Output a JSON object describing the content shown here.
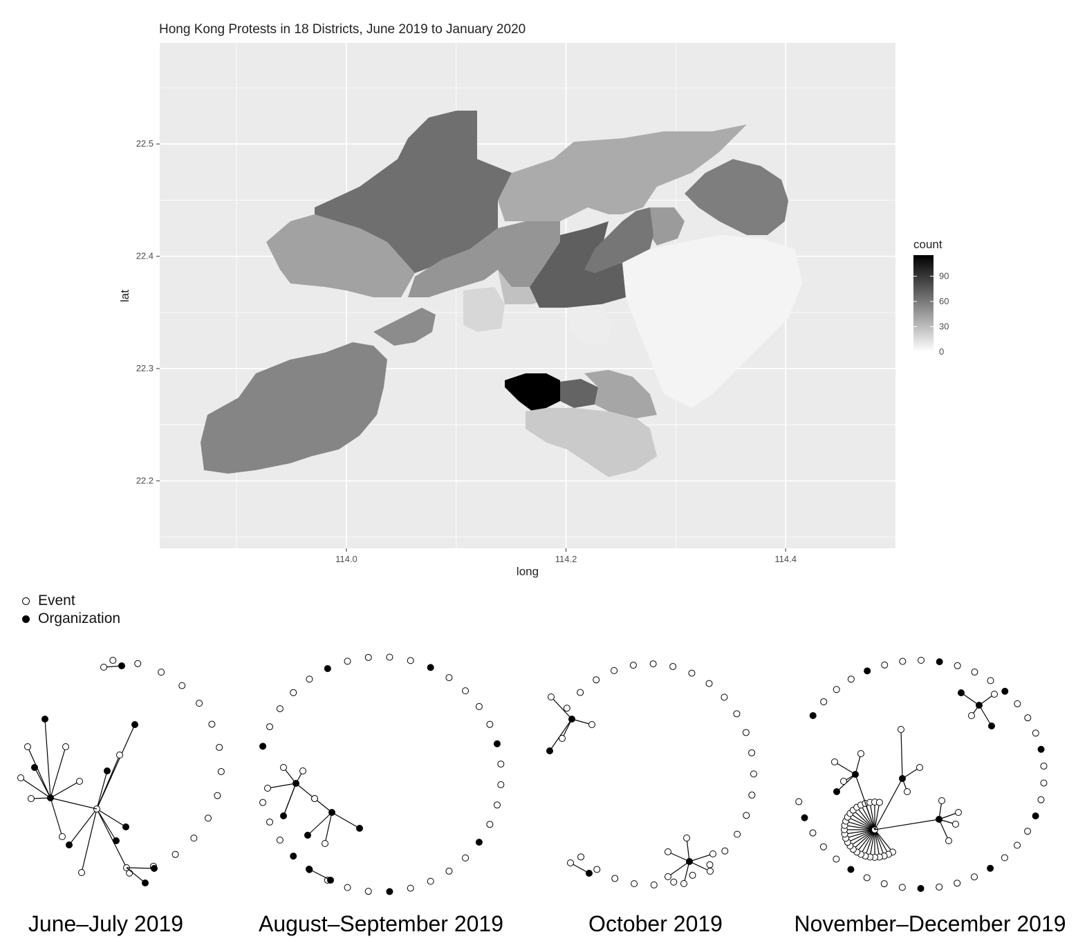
{
  "chart_data": [
    {
      "type": "heatmap",
      "title": "Hong Kong Protests in 18 Districts, June 2019 to January 2020",
      "xlabel": "long",
      "ylabel": "lat",
      "x_ticks": [
        "114.0",
        "114.2",
        "114.4"
      ],
      "y_ticks": [
        "22.2",
        "22.3",
        "22.4",
        "22.5"
      ],
      "xlim": [
        113.83,
        114.5
      ],
      "ylim": [
        22.14,
        22.59
      ],
      "grid": true,
      "legend_title": "count",
      "legend_ticks": [
        "0",
        "30",
        "60",
        "90"
      ],
      "color_scale": [
        "#ffffff",
        "#000000"
      ],
      "count_max": 115,
      "districts": [
        {
          "count": 55
        },
        {
          "count": 65
        },
        {
          "count": 42
        },
        {
          "count": 38
        },
        {
          "count": 58
        },
        {
          "count": 45
        },
        {
          "count": 5
        },
        {
          "count": 28
        },
        {
          "count": 18
        },
        {
          "count": 72
        },
        {
          "count": 48
        },
        {
          "count": 62
        },
        {
          "count": 8
        },
        {
          "count": 115
        },
        {
          "count": 70
        },
        {
          "count": 40
        },
        {
          "count": 24
        },
        {
          "count": 52
        }
      ]
    },
    {
      "type": "network",
      "legend": [
        {
          "label": "Event",
          "kind": "event"
        },
        {
          "label": "Organization",
          "kind": "organization"
        }
      ],
      "periods": [
        {
          "label": "June–July 2019"
        },
        {
          "label": "August–September 2019"
        },
        {
          "label": "October 2019"
        },
        {
          "label": "November–December 2019"
        }
      ]
    }
  ]
}
